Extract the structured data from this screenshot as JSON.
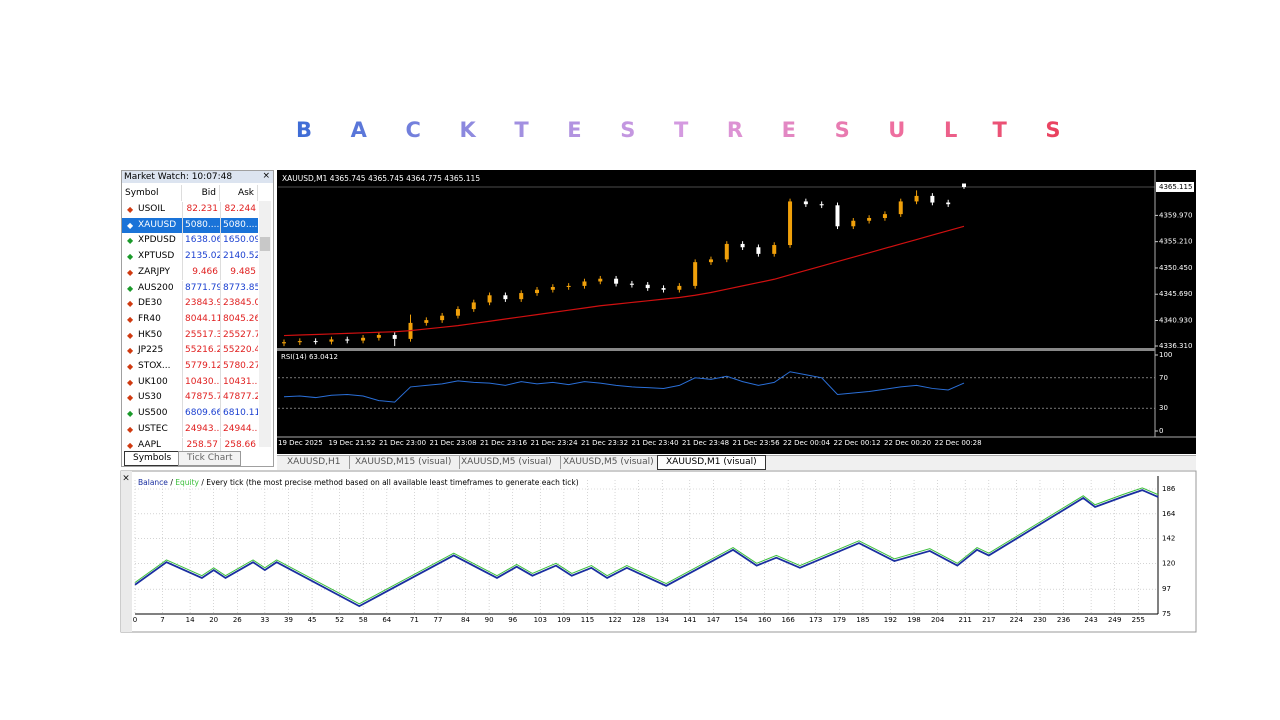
{
  "header": {
    "title": "BACKTESTRESULTS"
  },
  "market_watch": {
    "title": "Market Watch: 10:07:48",
    "columns": [
      "Symbol",
      "Bid",
      "Ask"
    ],
    "selected_row": 1,
    "rows": [
      {
        "symbol": "USOIL",
        "bid": "82.231",
        "ask": "82.244",
        "dir": "down"
      },
      {
        "symbol": "XAUUSD",
        "bid": "5080....",
        "ask": "5080....",
        "dir": "up"
      },
      {
        "symbol": "XPDUSD",
        "bid": "1638.06",
        "ask": "1650.09",
        "dir": "up"
      },
      {
        "symbol": "XPTUSD",
        "bid": "2135.02",
        "ask": "2140.52",
        "dir": "up"
      },
      {
        "symbol": "ZARJPY",
        "bid": "9.466",
        "ask": "9.485",
        "dir": "down"
      },
      {
        "symbol": "AUS200",
        "bid": "8771.79",
        "ask": "8773.85",
        "dir": "up"
      },
      {
        "symbol": "DE30",
        "bid": "23843.9",
        "ask": "23845.0",
        "dir": "down"
      },
      {
        "symbol": "FR40",
        "bid": "8044.11",
        "ask": "8045.26",
        "dir": "down"
      },
      {
        "symbol": "HK50",
        "bid": "25517.3",
        "ask": "25527.7",
        "dir": "down"
      },
      {
        "symbol": "JP225",
        "bid": "55216.2",
        "ask": "55220.4",
        "dir": "down"
      },
      {
        "symbol": "STOX...",
        "bid": "5779.12",
        "ask": "5780.27",
        "dir": "down"
      },
      {
        "symbol": "UK100",
        "bid": "10430....",
        "ask": "10431....",
        "dir": "down"
      },
      {
        "symbol": "US30",
        "bid": "47875.7",
        "ask": "47877.2",
        "dir": "down"
      },
      {
        "symbol": "US500",
        "bid": "6809.66",
        "ask": "6810.11",
        "dir": "up"
      },
      {
        "symbol": "USTEC",
        "bid": "24943....",
        "ask": "24944....",
        "dir": "down"
      },
      {
        "symbol": "AAPL",
        "bid": "258.57",
        "ask": "258.66",
        "dir": "down"
      }
    ],
    "tabs": [
      "Symbols",
      "Tick Chart"
    ]
  },
  "chart_tabs": [
    "XAUUSD,H1",
    "XAUUSD,M15 (visual)",
    "XAUUSD,M5 (visual)",
    "XAUUSD,M5 (visual)",
    "XAUUSD,M1 (visual)"
  ],
  "active_chart_tab": 4,
  "chart_data": [
    {
      "type": "candlestick",
      "header": "XAUUSD,M1  4365.745 4365.745 4364.775 4365.115",
      "up_color": "#f0a00a",
      "down_color": "#ffffff",
      "ma_color": "#d01010",
      "ylim": [
        4335.95,
        4367.83
      ],
      "yticks": [
        {
          "value": 4359.97,
          "label": "4359.970"
        },
        {
          "value": 4355.21,
          "label": "4355.210"
        },
        {
          "value": 4350.45,
          "label": "4350.450"
        },
        {
          "value": 4345.69,
          "label": "4345.690"
        },
        {
          "value": 4340.93,
          "label": "4340.930"
        },
        {
          "value": 4336.31,
          "label": "4336.310"
        }
      ],
      "last_price": 4365.115,
      "open": [
        4336.8,
        4337.0,
        4337.2,
        4337.1,
        4337.5,
        4337.3,
        4337.8,
        4338.3,
        4337.6,
        4340.5,
        4341.0,
        4341.8,
        4343.0,
        4344.2,
        4345.5,
        4344.8,
        4345.9,
        4346.5,
        4347.0,
        4347.2,
        4348.0,
        4348.5,
        4347.6,
        4347.4,
        4346.8,
        4346.5,
        4347.2,
        4351.5,
        4352.0,
        4354.8,
        4354.2,
        4353.0,
        4354.6,
        4362.5,
        4362.0,
        4361.8,
        4358.0,
        4359.0,
        4359.5,
        4360.2,
        4362.5,
        4363.5,
        4362.3,
        4365.745
      ],
      "high": [
        4337.5,
        4337.7,
        4337.7,
        4338.0,
        4338.0,
        4338.3,
        4338.8,
        4338.8,
        4342.0,
        4341.5,
        4342.3,
        4343.5,
        4344.7,
        4346.0,
        4346.0,
        4346.4,
        4347.0,
        4347.5,
        4347.7,
        4348.5,
        4349.0,
        4349.0,
        4348.1,
        4347.9,
        4347.3,
        4347.7,
        4352.0,
        4352.5,
        4355.3,
        4355.3,
        4354.7,
        4355.1,
        4363.0,
        4363.0,
        4362.5,
        4362.3,
        4359.5,
        4360.0,
        4360.7,
        4363.0,
        4364.5,
        4364.0,
        4362.8,
        4365.745
      ],
      "low": [
        4336.3,
        4336.5,
        4336.6,
        4336.6,
        4336.8,
        4336.8,
        4337.3,
        4336.3,
        4337.1,
        4340.0,
        4340.5,
        4341.3,
        4342.5,
        4343.7,
        4344.3,
        4344.3,
        4345.4,
        4346.0,
        4346.5,
        4346.7,
        4347.5,
        4347.1,
        4346.9,
        4346.3,
        4346.0,
        4346.0,
        4346.7,
        4351.0,
        4351.5,
        4353.7,
        4352.5,
        4352.5,
        4354.1,
        4361.5,
        4361.3,
        4357.5,
        4357.5,
        4358.5,
        4359.0,
        4359.7,
        4362.0,
        4361.8,
        4361.5,
        4364.775
      ],
      "close": [
        4337.0,
        4337.2,
        4337.1,
        4337.5,
        4337.3,
        4337.8,
        4338.3,
        4337.6,
        4340.5,
        4341.0,
        4341.8,
        4343.0,
        4344.2,
        4345.5,
        4344.8,
        4345.9,
        4346.5,
        4347.0,
        4347.2,
        4348.0,
        4348.5,
        4347.6,
        4347.4,
        4346.8,
        4346.5,
        4347.2,
        4351.5,
        4352.0,
        4354.8,
        4354.2,
        4353.0,
        4354.6,
        4362.5,
        4362.0,
        4361.8,
        4358.0,
        4359.0,
        4359.5,
        4360.2,
        4362.5,
        4363.5,
        4362.3,
        4362.0,
        4365.115
      ],
      "ma": [
        4338.2,
        4338.3,
        4338.4,
        4338.5,
        4338.6,
        4338.7,
        4338.8,
        4338.9,
        4339.1,
        4339.4,
        4339.7,
        4340.0,
        4340.4,
        4340.8,
        4341.2,
        4341.6,
        4342.0,
        4342.4,
        4342.8,
        4343.2,
        4343.6,
        4343.9,
        4344.2,
        4344.5,
        4344.8,
        4345.1,
        4345.5,
        4346.0,
        4346.6,
        4347.2,
        4347.8,
        4348.4,
        4349.2,
        4350.0,
        4350.8,
        4351.6,
        4352.4,
        4353.2,
        4354.0,
        4354.8,
        4355.6,
        4356.4,
        4357.2,
        4358.0
      ],
      "rsi": {
        "label": "RSI(14) 63.0412",
        "color": "#2a6fd8",
        "values": [
          45,
          46,
          44,
          47,
          48,
          46,
          40,
          38,
          58,
          60,
          62,
          66,
          64,
          63,
          60,
          65,
          62,
          64,
          61,
          65,
          63,
          60,
          58,
          57,
          56,
          60,
          70,
          68,
          72,
          65,
          60,
          64,
          78,
          74,
          70,
          48,
          50,
          52,
          55,
          58,
          60,
          56,
          54,
          63.0412
        ],
        "ylim": [
          0,
          100
        ],
        "yticks": [
          100,
          70,
          30,
          0
        ]
      },
      "xlabels": [
        "19 Dec 2025",
        "19 Dec 21:52",
        "21 Dec 23:00",
        "21 Dec 23:08",
        "21 Dec 23:16",
        "21 Dec 23:24",
        "21 Dec 23:32",
        "21 Dec 23:40",
        "21 Dec 23:48",
        "21 Dec 23:56",
        "22 Dec 00:04",
        "22 Dec 00:12",
        "22 Dec 00:20",
        "22 Dec 00:28"
      ]
    },
    {
      "type": "line",
      "subtitle": "/ Every tick (the most precise method based on all available least timeframes to generate each tick)",
      "legend_separator": "/",
      "x": [
        0,
        8,
        17,
        20,
        23,
        30,
        33,
        36,
        57,
        81,
        92,
        97,
        101,
        107,
        111,
        116,
        120,
        125,
        135,
        152,
        158,
        163,
        169,
        184,
        193,
        202,
        209,
        214,
        217,
        241,
        244,
        251,
        256,
        260
      ],
      "series": [
        {
          "name": "Balance",
          "color": "#1a2fa0",
          "values": [
            101,
            121,
            107,
            114,
            107,
            121,
            114,
            121,
            82,
            127,
            107,
            117,
            109,
            118,
            109,
            116,
            107,
            116,
            100,
            132,
            118,
            125,
            116,
            138,
            122,
            131,
            118,
            132,
            127,
            178,
            170,
            179,
            185,
            179
          ]
        },
        {
          "name": "Equity",
          "color": "#3cbf3c",
          "values": [
            103,
            123,
            109,
            116,
            109,
            123,
            116,
            123,
            84,
            129,
            109,
            119,
            111,
            120,
            111,
            118,
            109,
            118,
            102,
            134,
            120,
            127,
            118,
            140,
            124,
            133,
            120,
            134,
            129,
            180,
            172,
            181,
            187,
            181
          ]
        }
      ],
      "xlim": [
        0,
        260
      ],
      "ylim": [
        75,
        194
      ],
      "xticks": [
        0,
        7,
        14,
        20,
        26,
        33,
        39,
        45,
        52,
        58,
        64,
        71,
        77,
        84,
        90,
        96,
        103,
        109,
        115,
        122,
        128,
        134,
        141,
        147,
        154,
        160,
        166,
        173,
        179,
        185,
        192,
        198,
        204,
        211,
        217,
        224,
        230,
        236,
        243,
        249,
        255
      ],
      "yticks": [
        186,
        164,
        142,
        120,
        97,
        75
      ],
      "grid": true
    }
  ]
}
